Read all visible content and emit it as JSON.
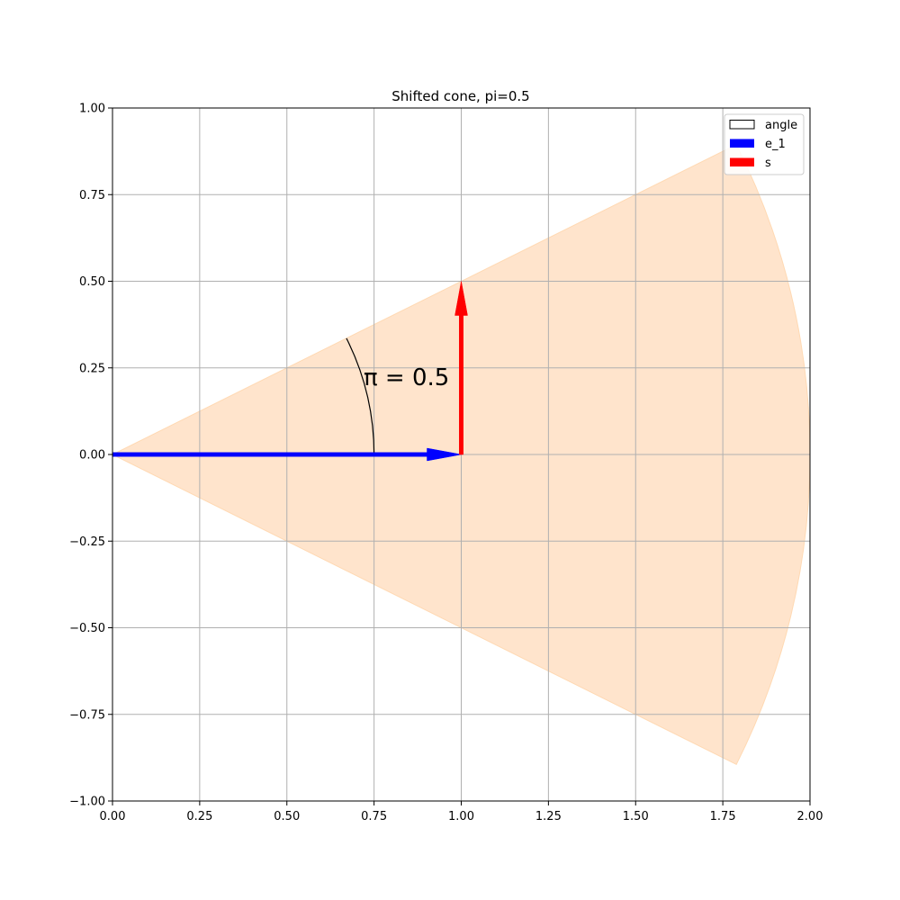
{
  "chart_data": {
    "type": "vector-plot",
    "title": "Shifted cone, pi=0.5",
    "xlabel": "",
    "ylabel": "",
    "xlim": [
      0,
      2
    ],
    "ylim": [
      -1,
      1
    ],
    "grid": true,
    "xticks": [
      "0.00",
      "0.25",
      "0.50",
      "0.75",
      "1.00",
      "1.25",
      "1.50",
      "1.75",
      "2.00"
    ],
    "yticks": [
      "−1.00",
      "−0.75",
      "−0.50",
      "−0.25",
      "0.00",
      "0.25",
      "0.50",
      "0.75",
      "1.00"
    ],
    "cone": {
      "apex": [
        0,
        0
      ],
      "half_angle_rad": 0.4636,
      "radius": 2.0,
      "color": "#ffe4cc"
    },
    "angle_arc": {
      "center": [
        0,
        0
      ],
      "radius": 0.75,
      "from_rad": 0.0,
      "to_rad": 0.4636,
      "color": "#000000"
    },
    "annotation": {
      "text": "π = 0.5",
      "x": 0.72,
      "y": 0.2
    },
    "vectors": [
      {
        "name": "e_1",
        "from": [
          0,
          0
        ],
        "to": [
          1,
          0
        ],
        "color": "#0000ff"
      },
      {
        "name": "s",
        "from": [
          1,
          0
        ],
        "to": [
          1,
          0.5
        ],
        "color": "#ff0000"
      }
    ],
    "legend": {
      "position": "top-right",
      "entries": [
        {
          "label": "angle",
          "style": "outline",
          "color": "#000000"
        },
        {
          "label": "e_1",
          "style": "fill",
          "color": "#0000ff"
        },
        {
          "label": "s",
          "style": "fill",
          "color": "#ff0000"
        }
      ]
    }
  }
}
